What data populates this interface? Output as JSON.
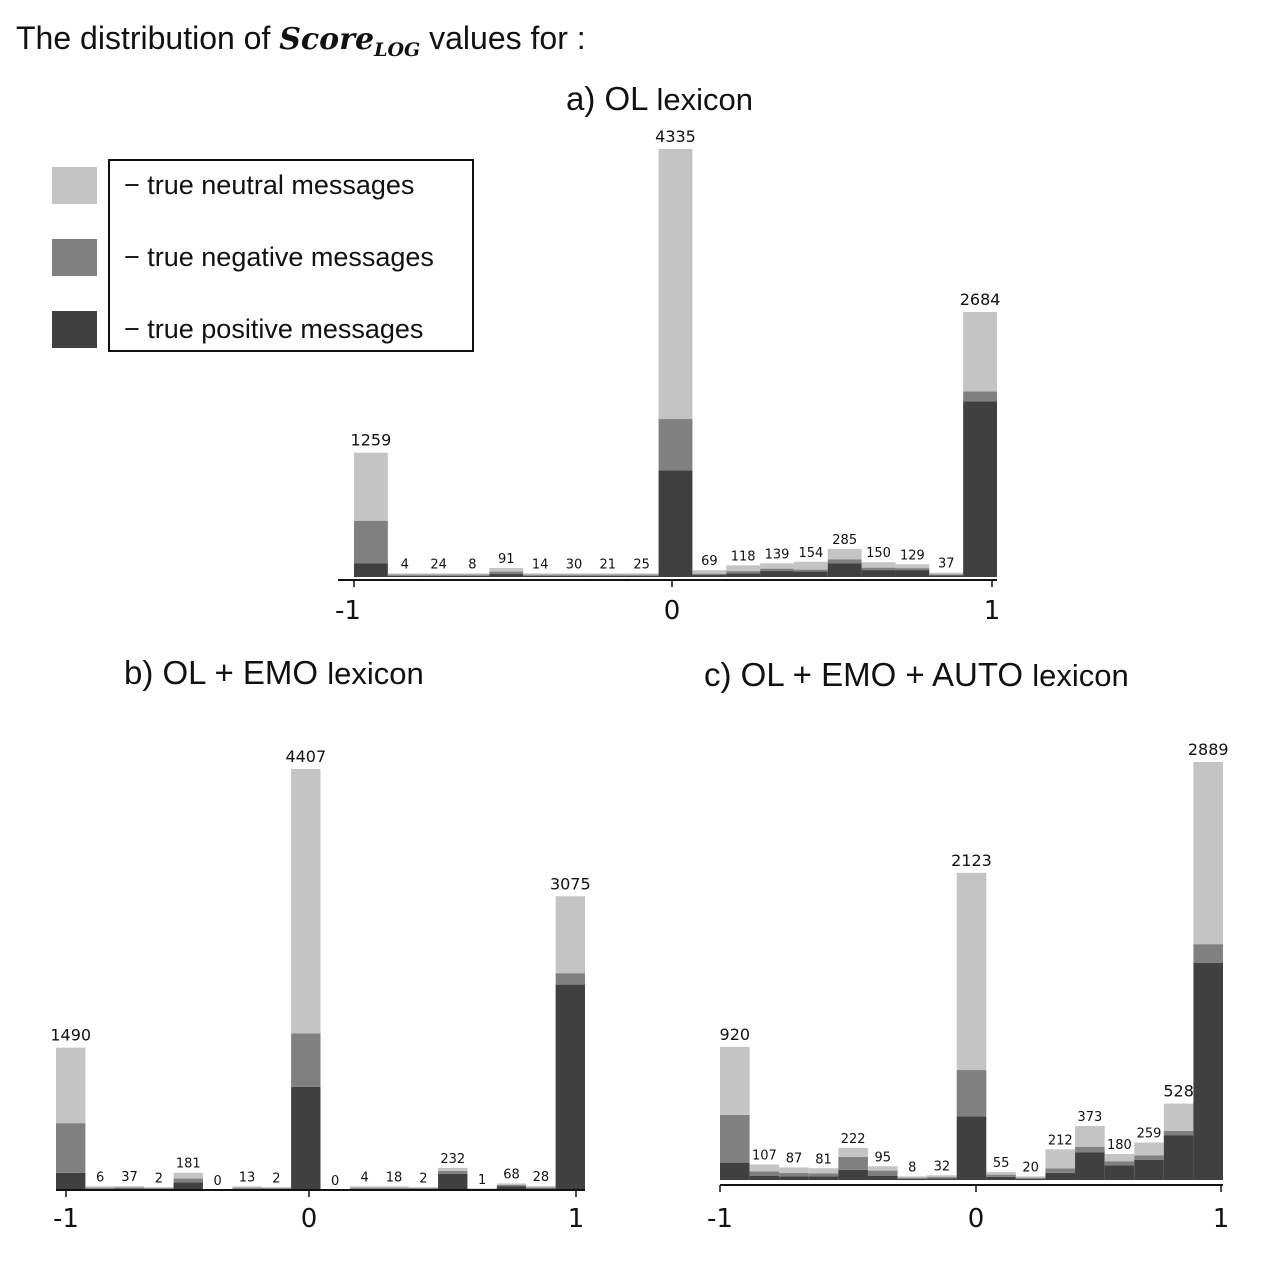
{
  "page_title": {
    "prefix": "The distribution of",
    "symbol": "Score",
    "symbol_sub": "LOG",
    "suffix": "values for :"
  },
  "legend": {
    "items": [
      {
        "label": "− true neutral messages",
        "color": "#c4c4c4"
      },
      {
        "label": "− true negative messages",
        "color": "#808080"
      },
      {
        "label": "− true positive messages",
        "color": "#404040"
      }
    ]
  },
  "panels": [
    {
      "letter": "a)",
      "name": "OL",
      "suffix": "lexicon"
    },
    {
      "letter": "b)",
      "name": "OL + EMO",
      "suffix": "lexicon"
    },
    {
      "letter": "c)",
      "name": "OL + EMO + AUTO",
      "suffix": "lexicon"
    }
  ],
  "chart_data": [
    {
      "type": "bar",
      "stacked": true,
      "title": "a) OL lexicon",
      "xlim": [
        -1,
        1
      ],
      "x_ticks": [
        "-1",
        "0",
        "1"
      ],
      "series_order": [
        "true positive messages",
        "true negative messages",
        "true neutral messages"
      ],
      "colors": [
        "#404040",
        "#808080",
        "#c4c4c4"
      ],
      "bins": [
        {
          "label": "1259",
          "stack": [
            140,
            430,
            689
          ]
        },
        {
          "label": "4",
          "stack": [
            2,
            1,
            1
          ]
        },
        {
          "label": "24",
          "stack": [
            12,
            6,
            6
          ]
        },
        {
          "label": "8",
          "stack": [
            4,
            2,
            2
          ]
        },
        {
          "label": "91",
          "stack": [
            30,
            25,
            36
          ]
        },
        {
          "label": "14",
          "stack": [
            5,
            4,
            5
          ]
        },
        {
          "label": "30",
          "stack": [
            10,
            8,
            12
          ]
        },
        {
          "label": "21",
          "stack": [
            7,
            6,
            8
          ]
        },
        {
          "label": "25",
          "stack": [
            8,
            7,
            10
          ]
        },
        {
          "label": "4335",
          "stack": [
            1080,
            520,
            2735
          ]
        },
        {
          "label": "69",
          "stack": [
            20,
            14,
            35
          ]
        },
        {
          "label": "118",
          "stack": [
            35,
            25,
            58
          ]
        },
        {
          "label": "139",
          "stack": [
            60,
            25,
            54
          ]
        },
        {
          "label": "154",
          "stack": [
            55,
            20,
            79
          ]
        },
        {
          "label": "285",
          "stack": [
            140,
            40,
            105
          ]
        },
        {
          "label": "150",
          "stack": [
            70,
            25,
            55
          ]
        },
        {
          "label": "129",
          "stack": [
            70,
            20,
            39
          ]
        },
        {
          "label": "37",
          "stack": [
            15,
            6,
            16
          ]
        },
        {
          "label": "2684",
          "stack": [
            1780,
            100,
            804
          ]
        }
      ]
    },
    {
      "type": "bar",
      "stacked": true,
      "title": "b) OL + EMO lexicon",
      "xlim": [
        -1,
        1
      ],
      "x_ticks": [
        "-1",
        "0",
        "1"
      ],
      "series_order": [
        "true positive messages",
        "true negative messages",
        "true neutral messages"
      ],
      "colors": [
        "#404040",
        "#808080",
        "#c4c4c4"
      ],
      "bins": [
        {
          "label": "1490",
          "stack": [
            180,
            520,
            790
          ]
        },
        {
          "label": "6",
          "stack": [
            3,
            2,
            1
          ]
        },
        {
          "label": "37",
          "stack": [
            15,
            10,
            12
          ]
        },
        {
          "label": "2",
          "stack": [
            1,
            1,
            0
          ]
        },
        {
          "label": "181",
          "stack": [
            80,
            40,
            61
          ]
        },
        {
          "label": "0",
          "stack": [
            0,
            0,
            0
          ]
        },
        {
          "label": "13",
          "stack": [
            5,
            3,
            5
          ]
        },
        {
          "label": "2",
          "stack": [
            1,
            1,
            0
          ]
        },
        {
          "label": "4407",
          "stack": [
            1080,
            560,
            2767
          ]
        },
        {
          "label": "0",
          "stack": [
            0,
            0,
            0
          ]
        },
        {
          "label": "4",
          "stack": [
            2,
            1,
            1
          ]
        },
        {
          "label": "18",
          "stack": [
            10,
            4,
            4
          ]
        },
        {
          "label": "2",
          "stack": [
            1,
            1,
            0
          ]
        },
        {
          "label": "232",
          "stack": [
            170,
            30,
            32
          ]
        },
        {
          "label": "1",
          "stack": [
            1,
            0,
            0
          ]
        },
        {
          "label": "68",
          "stack": [
            40,
            12,
            16
          ]
        },
        {
          "label": "28",
          "stack": [
            15,
            6,
            7
          ]
        },
        {
          "label": "3075",
          "stack": [
            2150,
            120,
            805
          ]
        }
      ]
    },
    {
      "type": "bar",
      "stacked": true,
      "title": "c) OL + EMO + AUTO lexicon",
      "xlim": [
        -1,
        1
      ],
      "x_ticks": [
        "-1",
        "0",
        "1"
      ],
      "series_order": [
        "true positive messages",
        "true negative messages",
        "true neutral messages"
      ],
      "colors": [
        "#404040",
        "#808080",
        "#c4c4c4"
      ],
      "bins": [
        {
          "label": "920",
          "stack": [
            120,
            330,
            470
          ]
        },
        {
          "label": "107",
          "stack": [
            30,
            30,
            47
          ]
        },
        {
          "label": "87",
          "stack": [
            25,
            25,
            37
          ]
        },
        {
          "label": "81",
          "stack": [
            25,
            20,
            36
          ]
        },
        {
          "label": "222",
          "stack": [
            70,
            90,
            62
          ]
        },
        {
          "label": "95",
          "stack": [
            30,
            35,
            30
          ]
        },
        {
          "label": "8",
          "stack": [
            3,
            3,
            2
          ]
        },
        {
          "label": "32",
          "stack": [
            12,
            8,
            12
          ]
        },
        {
          "label": "2123",
          "stack": [
            440,
            320,
            1363
          ]
        },
        {
          "label": "55",
          "stack": [
            22,
            15,
            18
          ]
        },
        {
          "label": "20",
          "stack": [
            8,
            5,
            7
          ]
        },
        {
          "label": "212",
          "stack": [
            50,
            30,
            132
          ]
        },
        {
          "label": "373",
          "stack": [
            190,
            40,
            143
          ]
        },
        {
          "label": "180",
          "stack": [
            100,
            30,
            50
          ]
        },
        {
          "label": "259",
          "stack": [
            140,
            30,
            89
          ]
        },
        {
          "label": "528",
          "stack": [
            310,
            30,
            188
          ]
        },
        {
          "label": "2889",
          "stack": [
            1500,
            130,
            1259
          ]
        }
      ]
    }
  ]
}
